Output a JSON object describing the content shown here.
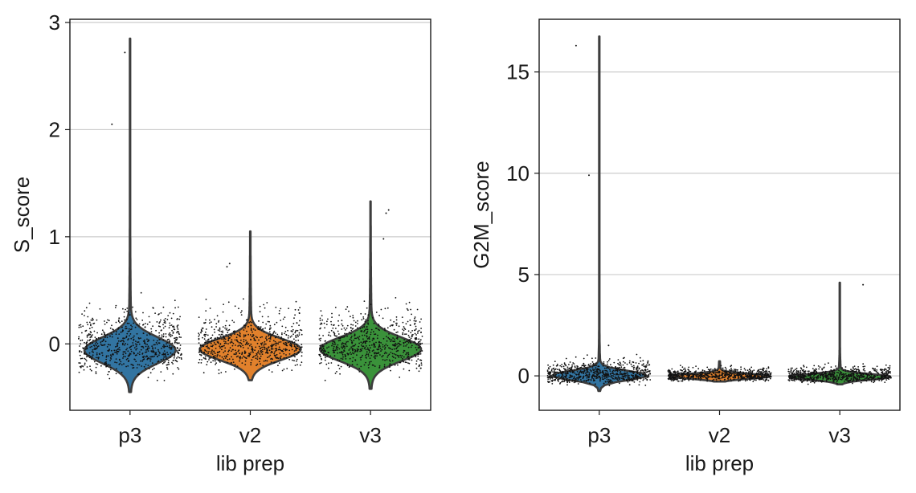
{
  "chart_data": [
    {
      "type": "violin",
      "categories": [
        "p3",
        "v2",
        "v3"
      ],
      "xlabel": "lib prep",
      "ylabel": "S_score",
      "ylim": [
        -0.62,
        3.03
      ],
      "yticks": [
        "0",
        "1",
        "2",
        "3"
      ],
      "grid": "horizontal",
      "colors": [
        "#3274a1",
        "#e1812c",
        "#3a923a"
      ],
      "violins": [
        {
          "category": "p3",
          "min": -0.45,
          "max": 2.85,
          "mode": -0.06,
          "spread": 0.12,
          "max_halfwidth_frac": 0.38,
          "outliers": [
            [
              -0.1,
              2.72
            ],
            [
              -0.35,
              2.05
            ]
          ]
        },
        {
          "category": "v2",
          "min": -0.34,
          "max": 1.05,
          "mode": -0.05,
          "spread": 0.1,
          "max_halfwidth_frac": 0.42,
          "outliers": [
            [
              -0.4,
              0.75
            ],
            [
              -0.45,
              0.72
            ]
          ]
        },
        {
          "category": "v3",
          "min": -0.42,
          "max": 1.33,
          "mode": -0.05,
          "spread": 0.11,
          "max_halfwidth_frac": 0.42,
          "outliers": [
            [
              0.3,
              1.22
            ],
            [
              0.35,
              1.25
            ],
            [
              0.25,
              0.98
            ]
          ]
        }
      ]
    },
    {
      "type": "violin",
      "categories": [
        "p3",
        "v2",
        "v3"
      ],
      "xlabel": "lib prep",
      "ylabel": "G2M_score",
      "ylim": [
        -1.7,
        17.6
      ],
      "yticks": [
        "0",
        "5",
        "10",
        "15"
      ],
      "grid": "horizontal",
      "colors": [
        "#3274a1",
        "#e1812c",
        "#3a923a"
      ],
      "violins": [
        {
          "category": "p3",
          "min": -0.75,
          "max": 16.75,
          "mode": 0.02,
          "spread": 0.22,
          "max_halfwidth_frac": 0.4,
          "outliers": [
            [
              -0.45,
              16.3
            ],
            [
              -0.2,
              9.9
            ],
            [
              0.18,
              1.5
            ]
          ]
        },
        {
          "category": "v2",
          "min": -0.28,
          "max": 0.72,
          "mode": -0.02,
          "spread": 0.12,
          "max_halfwidth_frac": 0.42,
          "outliers": []
        },
        {
          "category": "v3",
          "min": -0.42,
          "max": 4.6,
          "mode": -0.05,
          "spread": 0.14,
          "max_halfwidth_frac": 0.42,
          "outliers": [
            [
              0.45,
              4.5
            ]
          ]
        }
      ]
    }
  ]
}
